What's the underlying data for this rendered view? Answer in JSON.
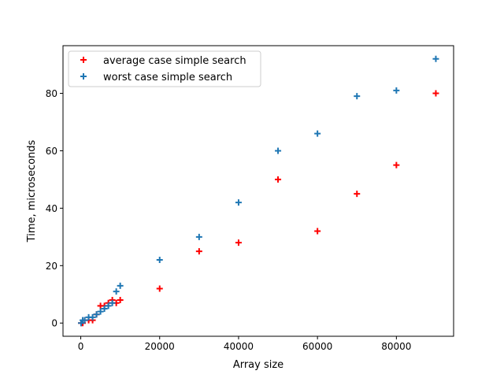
{
  "chart_data": {
    "type": "scatter",
    "xlabel": "Array size",
    "ylabel": "Time, microseconds",
    "xlim": [
      -4500,
      94500
    ],
    "ylim": [
      -4.6,
      96.6
    ],
    "xticks": [
      0,
      20000,
      40000,
      60000,
      80000
    ],
    "xtick_labels": [
      "0",
      "20000",
      "40000",
      "60000",
      "80000"
    ],
    "yticks": [
      0,
      20,
      40,
      60,
      80
    ],
    "ytick_labels": [
      "0",
      "20",
      "40",
      "60",
      "80"
    ],
    "grid": false,
    "legend_position": "upper-left",
    "marker": "+",
    "series": [
      {
        "name": "average case simple search",
        "color": "#ff0000",
        "points": [
          [
            100,
            0
          ],
          [
            500,
            0
          ],
          [
            1000,
            1
          ],
          [
            2000,
            1
          ],
          [
            3000,
            1
          ],
          [
            4000,
            3
          ],
          [
            5000,
            6
          ],
          [
            6000,
            6
          ],
          [
            7000,
            7
          ],
          [
            8000,
            8
          ],
          [
            9000,
            7
          ],
          [
            10000,
            8
          ],
          [
            20000,
            12
          ],
          [
            30000,
            25
          ],
          [
            40000,
            28
          ],
          [
            50000,
            50
          ],
          [
            60000,
            32
          ],
          [
            70000,
            45
          ],
          [
            80000,
            55
          ],
          [
            90000,
            80
          ]
        ]
      },
      {
        "name": "worst case simple search",
        "color": "#1f77b4",
        "points": [
          [
            100,
            0
          ],
          [
            500,
            1
          ],
          [
            1000,
            1
          ],
          [
            2000,
            2
          ],
          [
            3000,
            2
          ],
          [
            4000,
            3
          ],
          [
            5000,
            4
          ],
          [
            6000,
            5
          ],
          [
            7000,
            6
          ],
          [
            8000,
            7
          ],
          [
            9000,
            11
          ],
          [
            10000,
            13
          ],
          [
            20000,
            22
          ],
          [
            30000,
            30
          ],
          [
            40000,
            42
          ],
          [
            50000,
            60
          ],
          [
            60000,
            66
          ],
          [
            70000,
            79
          ],
          [
            80000,
            81
          ],
          [
            90000,
            92
          ]
        ]
      }
    ]
  }
}
